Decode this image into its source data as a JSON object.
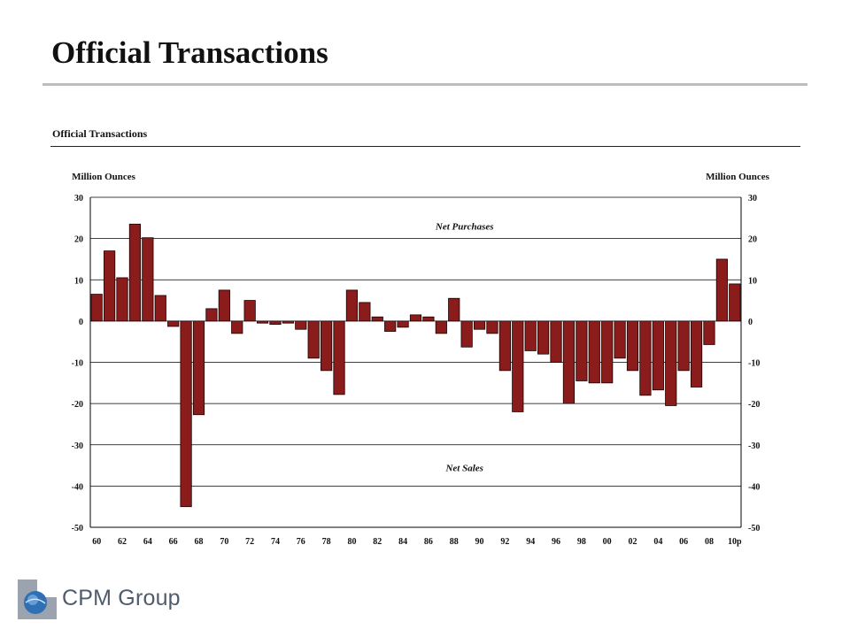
{
  "page": {
    "title": "Official Transactions"
  },
  "brand": {
    "name": "CPM Group"
  },
  "colors": {
    "bar_fill": "#8b1c1c",
    "bar_stroke": "#1a0000",
    "grid": "#000000",
    "rule": "#bdbdbd"
  },
  "chart_data": {
    "type": "bar",
    "title": "Official Transactions",
    "ylabel_left": "Million Ounces",
    "ylabel_right": "Million Ounces",
    "ylim": [
      -50,
      30
    ],
    "yticks": [
      30,
      20,
      10,
      0,
      -10,
      -20,
      -30,
      -40,
      -50
    ],
    "grid": true,
    "annotations": [
      {
        "text": "Net Purchases",
        "x": "88",
        "y": 23
      },
      {
        "text": "Net Sales",
        "x": "88",
        "y": -35.5
      }
    ],
    "xtick_labels": [
      "60",
      "62",
      "64",
      "66",
      "68",
      "70",
      "72",
      "74",
      "76",
      "78",
      "80",
      "82",
      "84",
      "86",
      "88",
      "90",
      "92",
      "94",
      "96",
      "98",
      "00",
      "02",
      "04",
      "06",
      "08",
      "10p"
    ],
    "categories": [
      "60",
      "61",
      "62",
      "63",
      "64",
      "65",
      "66",
      "67",
      "68",
      "69",
      "70",
      "71",
      "72",
      "73",
      "74",
      "75",
      "76",
      "77",
      "78",
      "79",
      "80",
      "81",
      "82",
      "83",
      "84",
      "85",
      "86",
      "87",
      "88",
      "89",
      "90",
      "91",
      "92",
      "93",
      "94",
      "95",
      "96",
      "97",
      "98",
      "99",
      "00",
      "01",
      "02",
      "03",
      "04",
      "05",
      "06",
      "07",
      "08",
      "09",
      "10p"
    ],
    "values": [
      6.5,
      17,
      10.5,
      23.5,
      20.2,
      6.2,
      -1.3,
      -45,
      -22.7,
      3,
      7.5,
      -3,
      5,
      -0.5,
      -0.8,
      -0.5,
      -2,
      -9,
      -12,
      -17.8,
      7.5,
      4.5,
      1,
      -2.5,
      -1.5,
      1.5,
      1,
      -3,
      5.5,
      -6.3,
      -2,
      -3,
      -12,
      -22,
      -7.2,
      -8,
      -10,
      -20,
      -14.5,
      -15,
      -15,
      -9,
      -12,
      -18,
      -16.7,
      -20.5,
      -12,
      -16,
      -5.7,
      15,
      9
    ]
  }
}
